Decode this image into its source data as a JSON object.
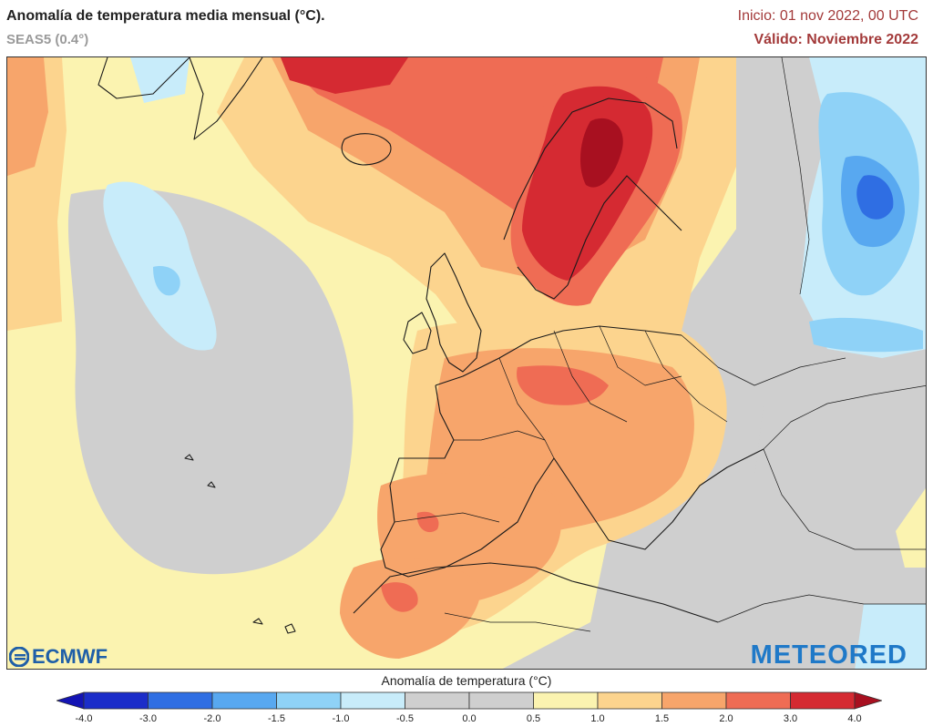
{
  "header": {
    "title": "Anomalía de temperatura media mensual (°C).",
    "subtitle": "SEAS5 (0.4°)",
    "init": "Inicio: 01 nov 2022, 00 UTC",
    "valid": "Válido: Noviembre 2022"
  },
  "logos": {
    "left": "ECMWF",
    "right": "METEORED"
  },
  "legend": {
    "title": "Anomalía de temperatura (°C)",
    "ticks": [
      "-4.0",
      "-3.0",
      "-2.0",
      "-1.5",
      "-1.0",
      "-0.5",
      "0.0",
      "0.5",
      "1.0",
      "1.5",
      "2.0",
      "3.0",
      "4.0"
    ],
    "colors": [
      "#1b2dc9",
      "#2f6ee3",
      "#58a8f0",
      "#8fd2f7",
      "#c8ecfa",
      "#cfcfcf",
      "#cfcfcf",
      "#fbf3b0",
      "#fcd48e",
      "#f7a56b",
      "#ef6c54",
      "#d52a32"
    ],
    "low_cap": "#1414b4",
    "high_cap": "#a81020"
  }
}
